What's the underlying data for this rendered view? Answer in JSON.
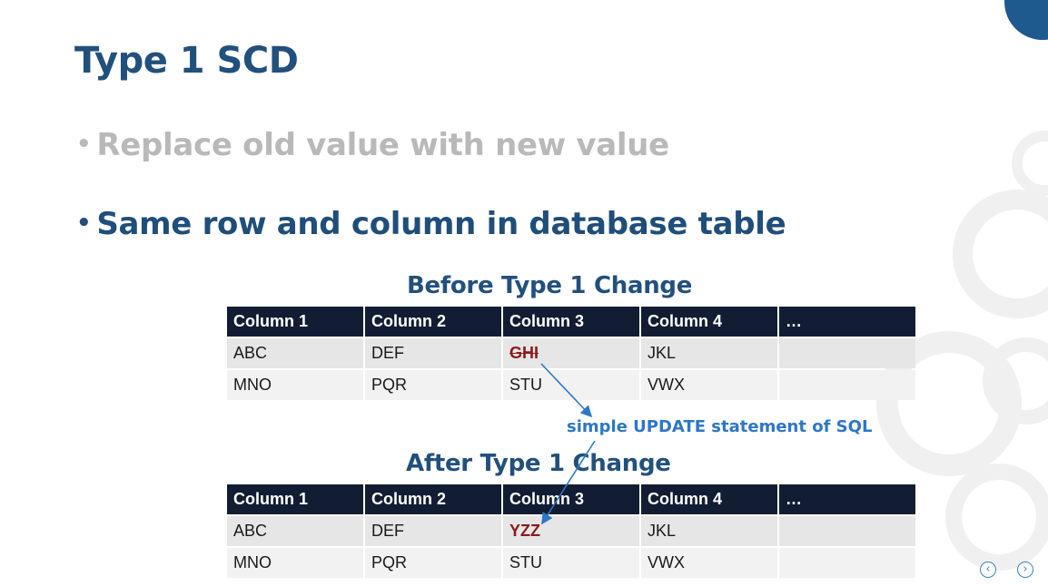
{
  "slide": {
    "title": "Type 1 SCD",
    "bullets": [
      {
        "text": "Replace old value with new value",
        "state": "dimmed"
      },
      {
        "text": "Same row and column in database table",
        "state": "active"
      }
    ],
    "bullet_glyph": "•"
  },
  "before_table": {
    "title": "Before Type 1 Change",
    "headers": [
      "Column 1",
      "Column 2",
      "Column 3",
      "Column 4",
      "…"
    ],
    "rows": [
      [
        "ABC",
        "DEF",
        "GHI",
        "JKL",
        ""
      ],
      [
        "MNO",
        "PQR",
        "STU",
        "VWX",
        ""
      ]
    ]
  },
  "after_table": {
    "title": "After Type 1 Change",
    "headers": [
      "Column 1",
      "Column 2",
      "Column 3",
      "Column 4",
      "…"
    ],
    "rows": [
      [
        "ABC",
        "DEF",
        "YZZ",
        "JKL",
        ""
      ],
      [
        "MNO",
        "PQR",
        "STU",
        "VWX",
        ""
      ]
    ]
  },
  "annotation": "simple UPDATE statement of SQL",
  "nav": {
    "prev_icon": "chevron-left-icon",
    "next_icon": "chevron-right-icon",
    "prev_glyph": "‹",
    "next_glyph": "›"
  },
  "colors": {
    "title": "#22507e",
    "dimmed_bullet": "#b9b9b9",
    "active_bullet": "#1f4e7a",
    "header_bg": "#121d33",
    "changed_value": "#8b1a1a",
    "annotation": "#2e76c8"
  }
}
